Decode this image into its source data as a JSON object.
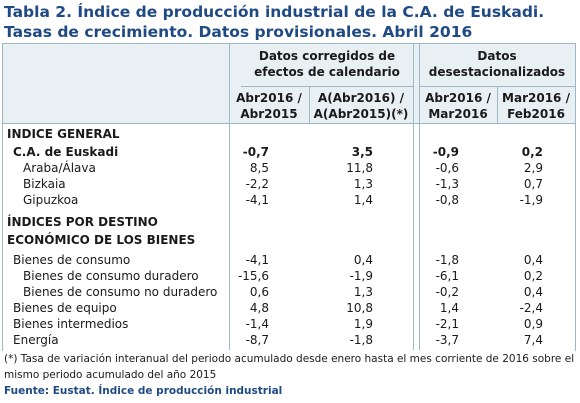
{
  "title": "Tabla 2. Índice de producción industrial de la C.A. de Euskadi. Tasas de crecimiento. Datos provisionales. Abril 2016",
  "groups": {
    "g1": "Datos corregidos de efectos de calendario",
    "g2": "Datos desestacionalizados"
  },
  "subheaders": {
    "c1": "Abr2016 / Abr2015",
    "c2": "A(Abr2016) / A(Abr2015)(*)",
    "c3": "Abr2016 / Mar2016",
    "c4": "Mar2016 / Feb2016"
  },
  "rows": [
    {
      "label": "INDICE GENERAL",
      "values": [
        "",
        "",
        "",
        ""
      ]
    },
    {
      "label": "C.A. de Euskadi",
      "values": [
        "-0,7",
        "3,5",
        "-0,9",
        "0,2"
      ]
    },
    {
      "label": "Araba/Álava",
      "values": [
        "8,5",
        "11,8",
        "-0,6",
        "2,9"
      ]
    },
    {
      "label": "Bizkaia",
      "values": [
        "-2,2",
        "1,3",
        "-1,3",
        "0,7"
      ]
    },
    {
      "label": "Gipuzkoa",
      "values": [
        "-4,1",
        "1,4",
        "-0,8",
        "-1,9"
      ]
    },
    {
      "label": "ÍNDICES POR DESTINO",
      "values": [
        "",
        "",
        "",
        ""
      ]
    },
    {
      "label": "ECONÓMICO DE LOS BIENES",
      "values": [
        "",
        "",
        "",
        ""
      ]
    },
    {
      "label": "Bienes de consumo",
      "values": [
        "-4,1",
        "0,4",
        "-1,8",
        "0,4"
      ]
    },
    {
      "label": "Bienes de consumo duradero",
      "values": [
        "-15,6",
        "-1,9",
        "-6,1",
        "0,2"
      ]
    },
    {
      "label": "Bienes de consumo no duradero",
      "values": [
        "0,6",
        "1,3",
        "-0,2",
        "0,4"
      ]
    },
    {
      "label": "Bienes de equipo",
      "values": [
        "4,8",
        "10,8",
        "1,4",
        "-2,4"
      ]
    },
    {
      "label": "Bienes intermedios",
      "values": [
        "-1,4",
        "1,9",
        "-2,1",
        "0,9"
      ]
    },
    {
      "label": "Energía",
      "values": [
        "-8,7",
        "-1,8",
        "-3,7",
        "7,4"
      ]
    }
  ],
  "note": "(*) Tasa de variación interanual del periodo acumulado desde enero hasta el mes corriente de 2016 sobre el mismo periodo acumulado del año 2015",
  "source": "Fuente: Eustat. Índice de producción industrial"
}
